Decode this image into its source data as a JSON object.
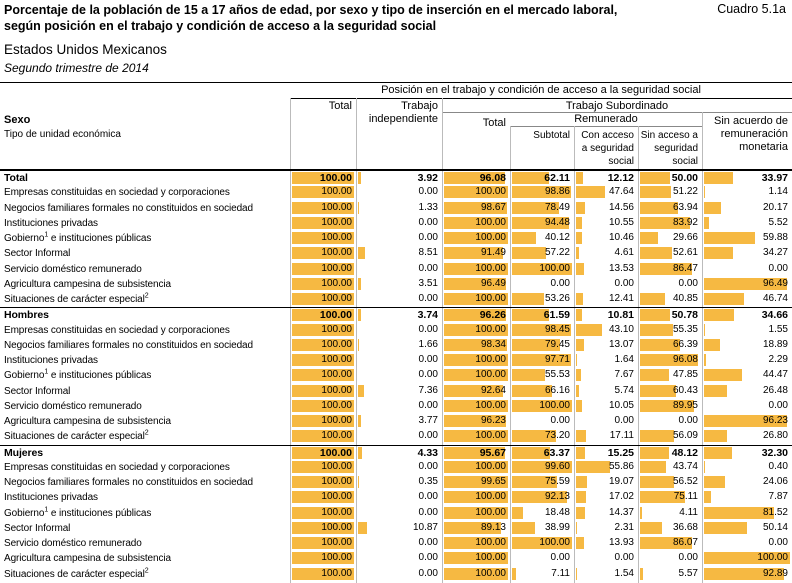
{
  "title": "Porcentaje de la población de 15 a 17 años de edad, por sexo y tipo de inserción en el mercado laboral, según posición en el trabajo y condición de acceso a la seguridad social",
  "cuadro": "Cuadro 5.1a",
  "country": "Estados Unidos Mexicanos",
  "period": "Segundo trimestre de 2014",
  "header": {
    "top": "Posición en el trabajo y condición de acceso a la seguridad social",
    "sexo": "Sexo",
    "tipo": "Tipo de unidad económica",
    "total": "Total",
    "independiente": "Trabajo independiente",
    "subordinado": "Trabajo Subordinado",
    "total_sub": "Total",
    "remunerado": "Remunerado",
    "subtotal": "Subtotal",
    "con_acceso": "Con acceso a seguridad social",
    "sin_acceso": "Sin acceso a seguridad social",
    "sin_acuerdo": "Sin acuerdo de remuneración monetaria"
  },
  "accent_color": "#f6b942",
  "rows": [
    {
      "label": "Total",
      "group": true,
      "values": [
        "100.00",
        "3.92",
        "96.08",
        "62.11",
        "12.12",
        "50.00",
        "33.97"
      ]
    },
    {
      "label": "Empresas constituidas en sociedad y corporaciones",
      "values": [
        "100.00",
        "0.00",
        "100.00",
        "98.86",
        "47.64",
        "51.22",
        "1.14"
      ]
    },
    {
      "label": "Negocios familiares formales no constituidos en sociedad",
      "values": [
        "100.00",
        "1.33",
        "98.67",
        "78.49",
        "14.56",
        "63.94",
        "20.17"
      ]
    },
    {
      "label": "Instituciones privadas",
      "values": [
        "100.00",
        "0.00",
        "100.00",
        "94.48",
        "10.55",
        "83.92",
        "5.52"
      ]
    },
    {
      "label": "Gobierno",
      "sup": "1",
      "suffix": " e instituciones públicas",
      "values": [
        "100.00",
        "0.00",
        "100.00",
        "40.12",
        "10.46",
        "29.66",
        "59.88"
      ]
    },
    {
      "label": "Sector Informal",
      "values": [
        "100.00",
        "8.51",
        "91.49",
        "57.22",
        "4.61",
        "52.61",
        "34.27"
      ]
    },
    {
      "label": "Servicio doméstico remunerado",
      "values": [
        "100.00",
        "0.00",
        "100.00",
        "100.00",
        "13.53",
        "86.47",
        "0.00"
      ]
    },
    {
      "label": "Agricultura campesina de subsistencia",
      "values": [
        "100.00",
        "3.51",
        "96.49",
        "0.00",
        "0.00",
        "0.00",
        "96.49"
      ]
    },
    {
      "label": "Situaciones de carácter especial",
      "sup": "2",
      "values": [
        "100.00",
        "0.00",
        "100.00",
        "53.26",
        "12.41",
        "40.85",
        "46.74"
      ]
    },
    {
      "label": "Hombres",
      "group": true,
      "values": [
        "100.00",
        "3.74",
        "96.26",
        "61.59",
        "10.81",
        "50.78",
        "34.66"
      ]
    },
    {
      "label": "Empresas constituidas en sociedad y corporaciones",
      "values": [
        "100.00",
        "0.00",
        "100.00",
        "98.45",
        "43.10",
        "55.35",
        "1.55"
      ]
    },
    {
      "label": "Negocios familiares formales no constituidos en sociedad",
      "values": [
        "100.00",
        "1.66",
        "98.34",
        "79.45",
        "13.07",
        "66.39",
        "18.89"
      ]
    },
    {
      "label": "Instituciones privadas",
      "values": [
        "100.00",
        "0.00",
        "100.00",
        "97.71",
        "1.64",
        "96.08",
        "2.29"
      ]
    },
    {
      "label": "Gobierno",
      "sup": "1",
      "suffix": " e instituciones públicas",
      "values": [
        "100.00",
        "0.00",
        "100.00",
        "55.53",
        "7.67",
        "47.85",
        "44.47"
      ]
    },
    {
      "label": "Sector Informal",
      "values": [
        "100.00",
        "7.36",
        "92.64",
        "66.16",
        "5.74",
        "60.43",
        "26.48"
      ]
    },
    {
      "label": "Servicio doméstico remunerado",
      "values": [
        "100.00",
        "0.00",
        "100.00",
        "100.00",
        "10.05",
        "89.95",
        "0.00"
      ]
    },
    {
      "label": "Agricultura campesina de subsistencia",
      "values": [
        "100.00",
        "3.77",
        "96.23",
        "0.00",
        "0.00",
        "0.00",
        "96.23"
      ]
    },
    {
      "label": "Situaciones de carácter especial",
      "sup": "2",
      "values": [
        "100.00",
        "0.00",
        "100.00",
        "73.20",
        "17.11",
        "56.09",
        "26.80"
      ]
    },
    {
      "label": "Mujeres",
      "group": true,
      "values": [
        "100.00",
        "4.33",
        "95.67",
        "63.37",
        "15.25",
        "48.12",
        "32.30"
      ]
    },
    {
      "label": "Empresas constituidas en sociedad y corporaciones",
      "values": [
        "100.00",
        "0.00",
        "100.00",
        "99.60",
        "55.86",
        "43.74",
        "0.40"
      ]
    },
    {
      "label": "Negocios familiares formales no constituidos en sociedad",
      "values": [
        "100.00",
        "0.35",
        "99.65",
        "75.59",
        "19.07",
        "56.52",
        "24.06"
      ]
    },
    {
      "label": "Instituciones privadas",
      "values": [
        "100.00",
        "0.00",
        "100.00",
        "92.13",
        "17.02",
        "75.11",
        "7.87"
      ]
    },
    {
      "label": "Gobierno",
      "sup": "1",
      "suffix": " e instituciones públicas",
      "values": [
        "100.00",
        "0.00",
        "100.00",
        "18.48",
        "14.37",
        "4.11",
        "81.52"
      ]
    },
    {
      "label": "Sector Informal",
      "values": [
        "100.00",
        "10.87",
        "89.13",
        "38.99",
        "2.31",
        "36.68",
        "50.14"
      ]
    },
    {
      "label": "Servicio doméstico remunerado",
      "values": [
        "100.00",
        "0.00",
        "100.00",
        "100.00",
        "13.93",
        "86.07",
        "0.00"
      ]
    },
    {
      "label": "Agricultura campesina de subsistencia",
      "values": [
        "100.00",
        "0.00",
        "100.00",
        "0.00",
        "0.00",
        "0.00",
        "100.00"
      ]
    },
    {
      "label": "Situaciones de carácter especial",
      "sup": "2",
      "values": [
        "100.00",
        "0.00",
        "100.00",
        "7.11",
        "1.54",
        "5.57",
        "92.89"
      ]
    }
  ]
}
